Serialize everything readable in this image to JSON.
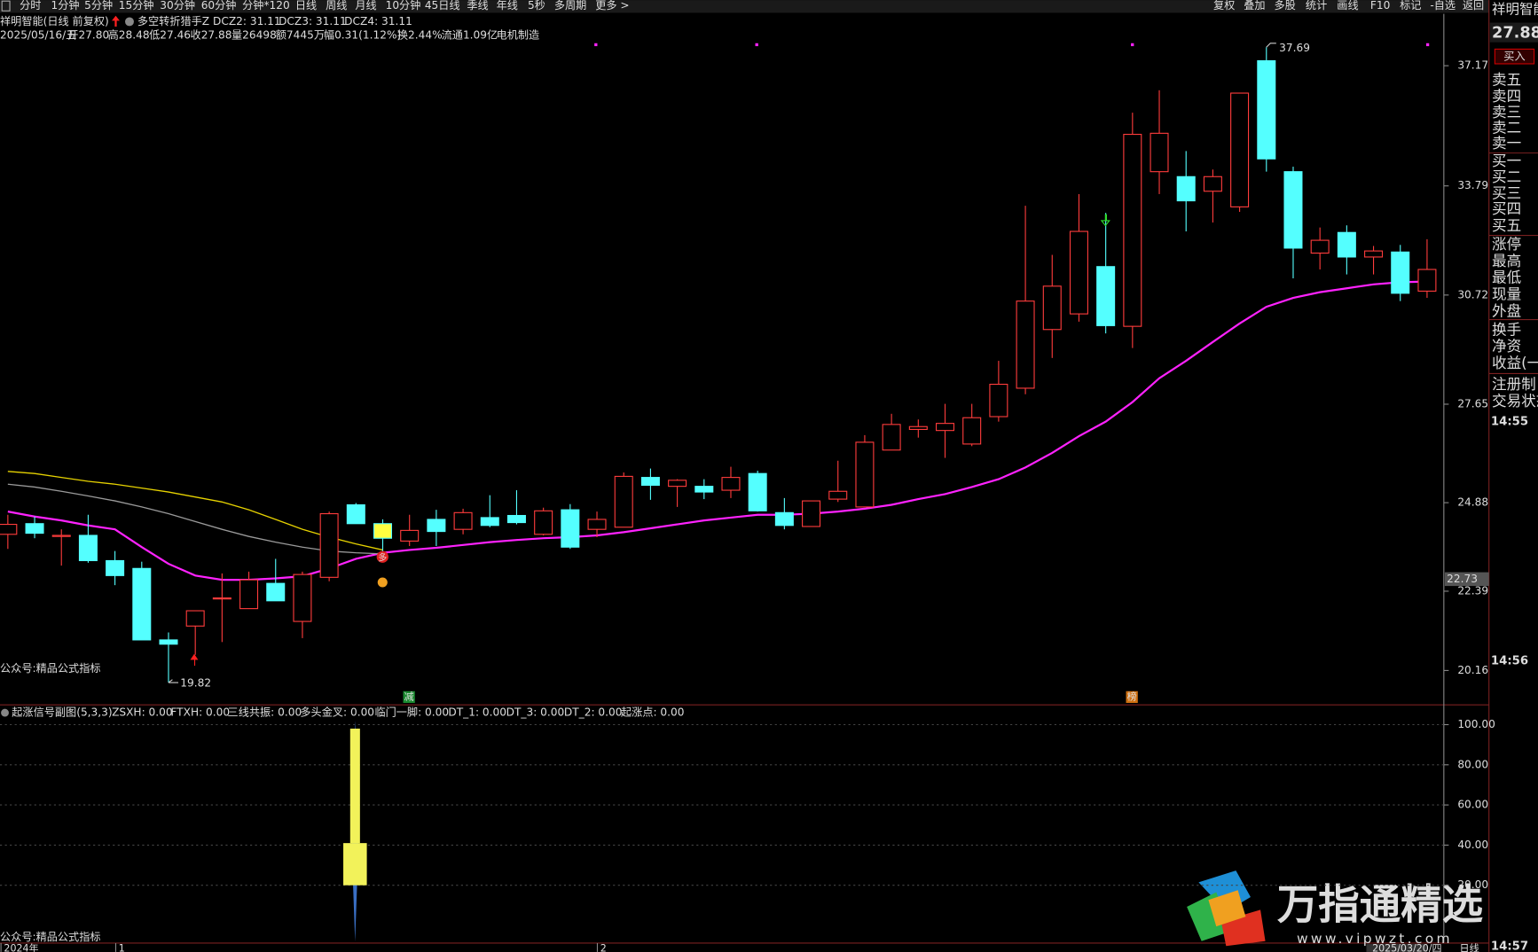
{
  "toolbar_left": [
    "分时",
    "1分钟",
    "5分钟",
    "15分钟",
    "30分钟",
    "60分钟",
    "分钟*120",
    "日线",
    "周线",
    "月线",
    "10分钟",
    "45日线",
    "季线",
    "年线",
    "5秒",
    "多周期",
    "更多 >"
  ],
  "toolbar_right": [
    "复权",
    "叠加",
    "多股",
    "统计",
    "画线",
    "F10",
    "标记",
    "-自选",
    "返回"
  ],
  "header": {
    "title": "祥明智能(日线 前复权)",
    "indicator": "多空转折猎手Z",
    "indicator_values": [
      "DCZ2: 31.11",
      "DCZ3: 31.11",
      "DCZ4: 31.11"
    ],
    "quote": [
      "2025/05/16/五",
      "开27.80",
      "高28.48",
      "低27.46",
      "收27.88",
      "量26498",
      "额7445万",
      "幅0.31(1.12%)",
      "换2.44%",
      "流通1.09亿",
      "电机制造"
    ]
  },
  "chart_data": [
    {
      "type": "candlestick",
      "up_color": "#ff3c3c",
      "down_color": "#54ffff",
      "log_scale": false,
      "grid": false,
      "open": [
        23.99,
        24.29,
        23.93,
        23.96,
        23.25,
        23.03,
        21.02,
        21.41,
        22.18,
        21.9,
        22.61,
        21.54,
        22.78,
        24.82,
        24.29,
        23.8,
        24.41,
        24.13,
        24.46,
        24.52,
        23.99,
        24.68,
        24.13,
        24.19,
        25.59,
        25.34,
        25.34,
        25.23,
        25.7,
        24.6,
        24.21,
        24.98,
        24.76,
        26.36,
        26.94,
        26.91,
        26.53,
        27.3,
        28.1,
        29.75,
        30.19,
        31.52,
        29.84,
        34.19,
        34.05,
        33.64,
        33.2,
        37.31,
        34.19,
        31.9,
        32.48,
        31.79,
        31.93,
        30.83
      ],
      "high": [
        24.54,
        24.49,
        24.13,
        24.54,
        23.52,
        23.22,
        21.23,
        21.84,
        22.89,
        22.94,
        23.3,
        22.94,
        24.63,
        24.87,
        24.41,
        24.54,
        24.68,
        24.71,
        25.09,
        25.23,
        24.74,
        24.84,
        24.63,
        25.73,
        25.84,
        25.54,
        25.54,
        25.89,
        25.78,
        25.01,
        24.93,
        26.06,
        26.78,
        27.38,
        27.22,
        27.66,
        27.66,
        28.87,
        33.23,
        31.85,
        33.56,
        33.03,
        35.85,
        36.48,
        34.77,
        34.25,
        36.4,
        37.69,
        34.33,
        32.62,
        32.68,
        32.1,
        32.13,
        32.29
      ],
      "low": [
        23.58,
        23.88,
        23.11,
        23.19,
        22.56,
        21.02,
        19.82,
        20.6,
        20.96,
        21.9,
        22.12,
        21.07,
        22.67,
        24.29,
        23.44,
        23.66,
        23.66,
        23.99,
        24.19,
        24.27,
        23.96,
        23.58,
        23.91,
        24.19,
        24.96,
        24.76,
        24.98,
        25.01,
        24.63,
        24.13,
        24.21,
        24.9,
        24.76,
        26.36,
        26.71,
        26.14,
        26.47,
        27.16,
        27.93,
        28.95,
        29.97,
        29.64,
        29.23,
        33.56,
        32.51,
        32.76,
        33.06,
        34.19,
        31.19,
        31.44,
        31.3,
        31.3,
        30.55,
        30.64
      ],
      "close": [
        24.27,
        24.02,
        23.96,
        23.25,
        22.83,
        21.02,
        20.9,
        21.84,
        22.2,
        22.71,
        22.12,
        22.86,
        24.57,
        24.29,
        23.88,
        24.1,
        24.07,
        24.6,
        24.24,
        24.32,
        24.65,
        23.63,
        24.41,
        25.62,
        25.37,
        25.51,
        25.18,
        25.59,
        24.65,
        24.24,
        24.93,
        25.2,
        26.58,
        27.08,
        27.02,
        27.11,
        27.27,
        28.21,
        30.55,
        30.97,
        32.51,
        29.86,
        35.24,
        35.27,
        33.37,
        34.05,
        36.4,
        34.55,
        32.04,
        32.26,
        31.79,
        31.96,
        30.77,
        31.44
      ],
      "series": [
        {
          "color": "#ff22ff",
          "values": [
            24.63,
            24.49,
            24.38,
            24.24,
            24.13,
            23.63,
            23.16,
            22.83,
            22.71,
            22.71,
            22.75,
            22.81,
            23.03,
            23.3,
            23.47,
            23.55,
            23.61,
            23.69,
            23.77,
            23.83,
            23.88,
            23.91,
            23.96,
            24.05,
            24.16,
            24.27,
            24.38,
            24.46,
            24.54,
            24.54,
            24.57,
            24.63,
            24.71,
            24.82,
            24.98,
            25.12,
            25.32,
            25.54,
            25.87,
            26.28,
            26.75,
            27.16,
            27.71,
            28.38,
            28.87,
            29.4,
            29.92,
            30.39,
            30.64,
            30.8,
            30.91,
            31.02,
            31.08,
            31.1
          ]
        },
        {
          "color": "#e6d200",
          "values": [
            25.76,
            25.7,
            25.59,
            25.48,
            25.4,
            25.29,
            25.18,
            25.04,
            24.9,
            24.68,
            24.41,
            24.13,
            23.91,
            23.72,
            23.55,
            null,
            null,
            null,
            null,
            null,
            null,
            null,
            null,
            null,
            null,
            null,
            null,
            null,
            null,
            null,
            null,
            null,
            null,
            null,
            null,
            null,
            null,
            null,
            null,
            null,
            null,
            null,
            null,
            null,
            null,
            null,
            null,
            null,
            null,
            null,
            null,
            null,
            null,
            null
          ]
        },
        {
          "color": "#9a9a9a",
          "values": [
            25.4,
            25.32,
            25.2,
            25.07,
            24.93,
            24.76,
            24.57,
            24.35,
            24.13,
            23.93,
            23.77,
            23.63,
            23.52,
            23.47,
            23.44,
            null,
            null,
            null,
            null,
            null,
            null,
            null,
            null,
            null,
            null,
            null,
            null,
            null,
            null,
            null,
            null,
            null,
            null,
            null,
            null,
            null,
            null,
            null,
            null,
            null,
            null,
            null,
            null,
            null,
            null,
            null,
            null,
            null,
            null,
            null,
            null,
            null,
            null,
            null
          ]
        }
      ],
      "ylim": [
        19.22,
        38.63
      ],
      "yticks": [
        37.17,
        33.79,
        30.72,
        27.65,
        24.88,
        22.39,
        20.16
      ],
      "annotations": [
        "37.69",
        "19.82"
      ],
      "crosshair_value": 22.73,
      "signal_labels": [
        "多",
        "减",
        "榜"
      ],
      "note": "公众号:精品公式指标"
    },
    {
      "type": "bar",
      "title": "起涨信号副图(5,3,3)",
      "grid": true,
      "legend": [
        "ZSXH: 0.00",
        "FTXH: 0.00",
        "三线共振: 0.00",
        "多头金叉: 0.00",
        "临门一脚: 0.00",
        "DT_1: 0.00",
        "DT_3: 0.00",
        "DT_2: 0.00",
        "起涨点: 0.00"
      ],
      "legend_colors": [
        "#e0e0e0",
        "#e6d200",
        "#e0e0e0",
        "#e0e0e0",
        "#e0e0e0",
        "#2f4fff",
        "#e0e0e0",
        "#e6d200",
        "#ff22ff"
      ],
      "series": [
        {
          "color": "#3a6fc4",
          "values": [
            -8,
            102
          ]
        },
        {
          "color": "#f2f25a",
          "values": [
            41,
            98
          ]
        },
        {
          "color": "#f2f25a",
          "values": [
            20,
            41
          ]
        }
      ],
      "ylim": [
        -8.8,
        103
      ],
      "yticks": [
        {
          "value": 100,
          "label": "100.00"
        },
        {
          "value": 80,
          "label": "80.00"
        },
        {
          "value": 60,
          "label": "60.00"
        },
        {
          "value": 40,
          "label": "40.00"
        },
        {
          "value": 20,
          "label": "20.00"
        }
      ],
      "note": "公众号:精品公式指标"
    }
  ],
  "time_axis": [
    "2024年",
    "1",
    "2",
    "2025/03/20/四",
    "日线"
  ],
  "side_panel": {
    "name": "祥明智能",
    "price": 27.88,
    "button": "买入",
    "rows": [
      "卖五",
      "卖四",
      "卖三",
      "卖二",
      "卖一",
      "买一",
      "买二",
      "买三",
      "买四",
      "买五",
      "涨停",
      "最高",
      "最低",
      "现量",
      "外盘",
      "换手",
      "净资",
      "收益(一)",
      "注册制",
      "交易状态"
    ],
    "times": [
      "14:55",
      "14:56",
      "14:57"
    ]
  },
  "watermark": {
    "brand": "万指通精选",
    "url": "www.vipwzt.com"
  }
}
